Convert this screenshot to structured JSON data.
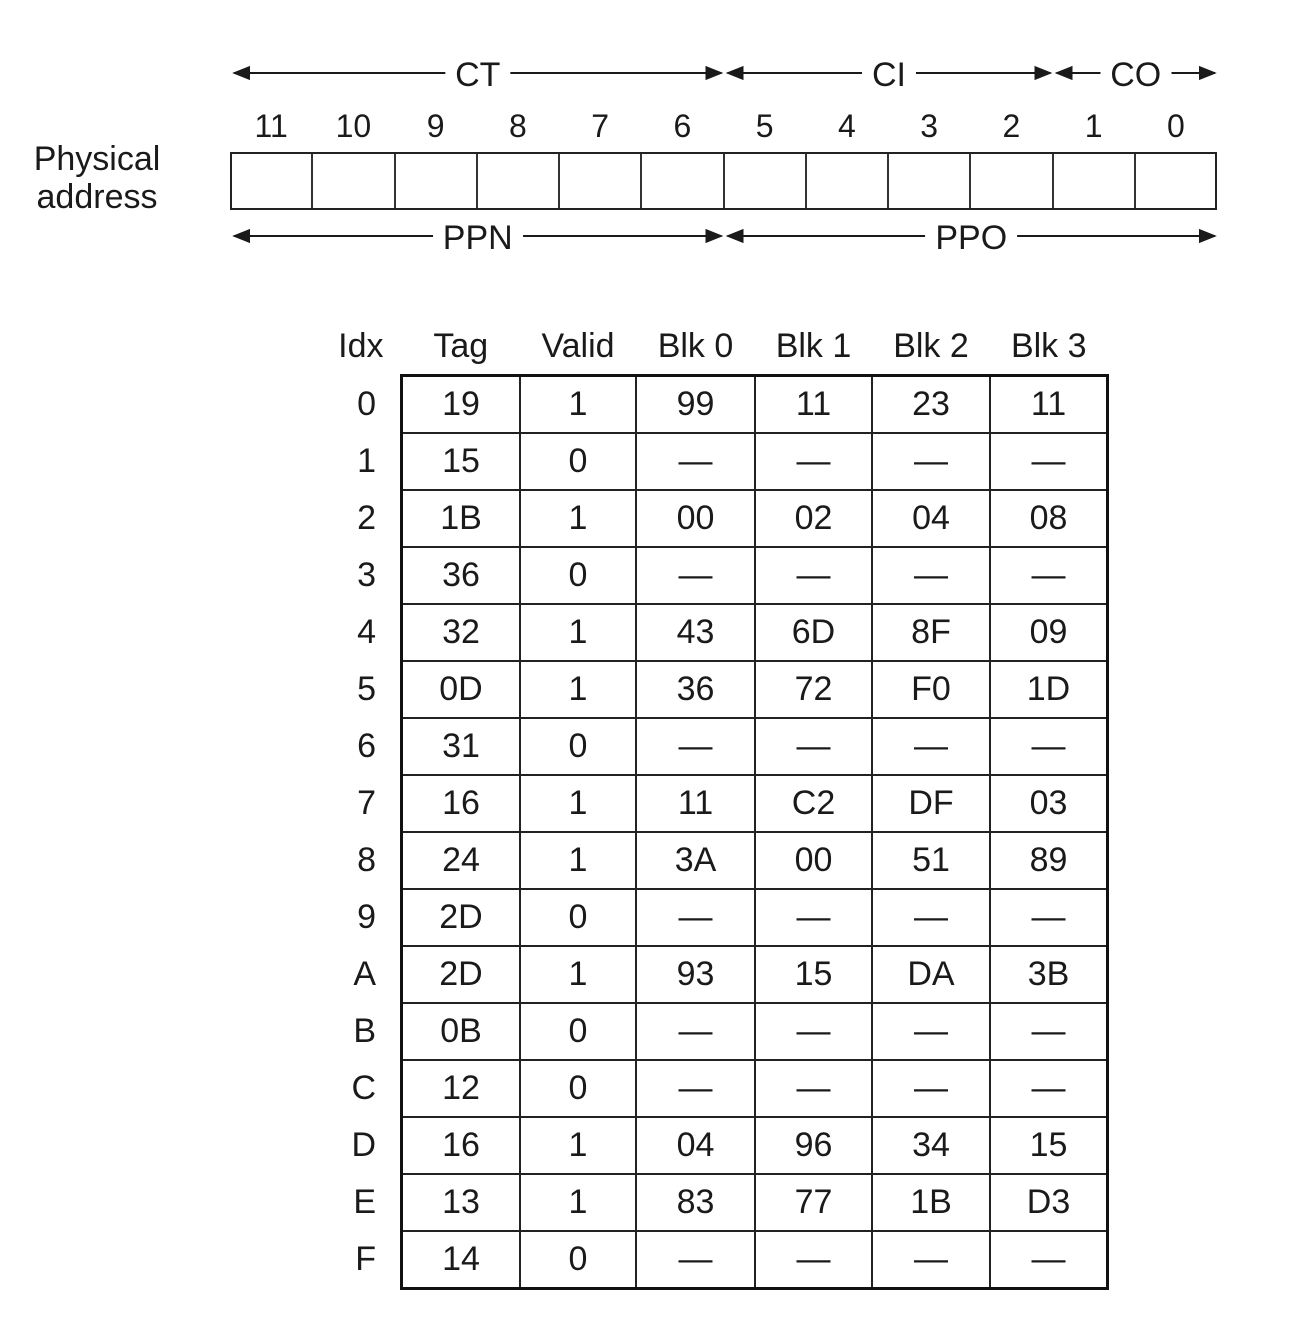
{
  "address": {
    "side_label_line1": "Physical",
    "side_label_line2": "address",
    "bits": [
      "11",
      "10",
      "9",
      "8",
      "7",
      "6",
      "5",
      "4",
      "3",
      "2",
      "1",
      "0"
    ],
    "top_fields": [
      {
        "label": "CT",
        "from_bit": 11,
        "to_bit": 6
      },
      {
        "label": "CI",
        "from_bit": 5,
        "to_bit": 2
      },
      {
        "label": "CO",
        "from_bit": 1,
        "to_bit": 0
      }
    ],
    "bottom_fields": [
      {
        "label": "PPN",
        "from_bit": 11,
        "to_bit": 6
      },
      {
        "label": "PPO",
        "from_bit": 5,
        "to_bit": 0
      }
    ]
  },
  "cache": {
    "headers": [
      "Idx",
      "Tag",
      "Valid",
      "Blk 0",
      "Blk 1",
      "Blk 2",
      "Blk 3"
    ],
    "rows": [
      [
        "0",
        "19",
        "1",
        "99",
        "11",
        "23",
        "11"
      ],
      [
        "1",
        "15",
        "0",
        "—",
        "—",
        "—",
        "—"
      ],
      [
        "2",
        "1B",
        "1",
        "00",
        "02",
        "04",
        "08"
      ],
      [
        "3",
        "36",
        "0",
        "—",
        "—",
        "—",
        "—"
      ],
      [
        "4",
        "32",
        "1",
        "43",
        "6D",
        "8F",
        "09"
      ],
      [
        "5",
        "0D",
        "1",
        "36",
        "72",
        "F0",
        "1D"
      ],
      [
        "6",
        "31",
        "0",
        "—",
        "—",
        "—",
        "—"
      ],
      [
        "7",
        "16",
        "1",
        "11",
        "C2",
        "DF",
        "03"
      ],
      [
        "8",
        "24",
        "1",
        "3A",
        "00",
        "51",
        "89"
      ],
      [
        "9",
        "2D",
        "0",
        "—",
        "—",
        "—",
        "—"
      ],
      [
        "A",
        "2D",
        "1",
        "93",
        "15",
        "DA",
        "3B"
      ],
      [
        "B",
        "0B",
        "0",
        "—",
        "—",
        "—",
        "—"
      ],
      [
        "C",
        "12",
        "0",
        "—",
        "—",
        "—",
        "—"
      ],
      [
        "D",
        "16",
        "1",
        "04",
        "96",
        "34",
        "15"
      ],
      [
        "E",
        "13",
        "1",
        "83",
        "77",
        "1B",
        "D3"
      ],
      [
        "F",
        "14",
        "0",
        "—",
        "—",
        "—",
        "—"
      ]
    ]
  }
}
